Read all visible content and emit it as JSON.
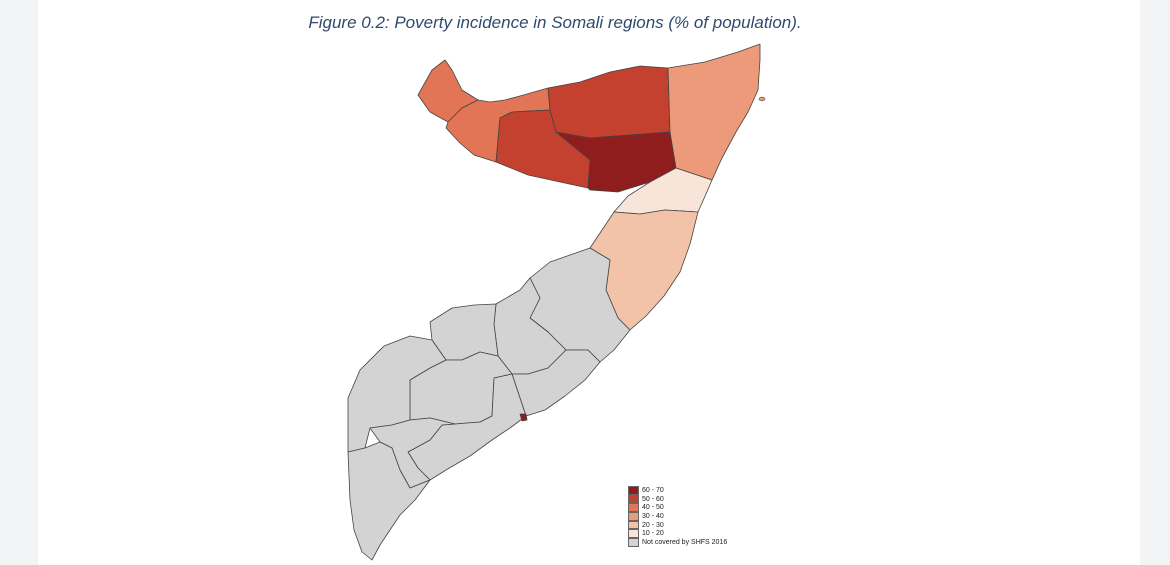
{
  "figure": {
    "caption": "Figure 0.2: Poverty incidence in Somali regions (% of population)."
  },
  "colors": {
    "c60_70": "#8f1d1d",
    "c50_60": "#c44130",
    "c40_50": "#e27556",
    "c30_40": "#ec9a7a",
    "c20_30": "#f2c3a9",
    "c10_20": "#f8e4d8",
    "not_covered": "#d3d3d3",
    "border": "#444444"
  },
  "legend": {
    "items": [
      {
        "label": "60 - 70",
        "color": "#8f1d1d"
      },
      {
        "label": "50 - 60",
        "color": "#c44130"
      },
      {
        "label": "40 - 50",
        "color": "#e27556"
      },
      {
        "label": "30 - 40",
        "color": "#ec9a7a"
      },
      {
        "label": "20 - 30",
        "color": "#f2c3a9"
      },
      {
        "label": "10 - 20",
        "color": "#f8e4d8"
      },
      {
        "label": "Not covered by SHFS 2016",
        "color": "#d3d3d3"
      }
    ]
  }
}
